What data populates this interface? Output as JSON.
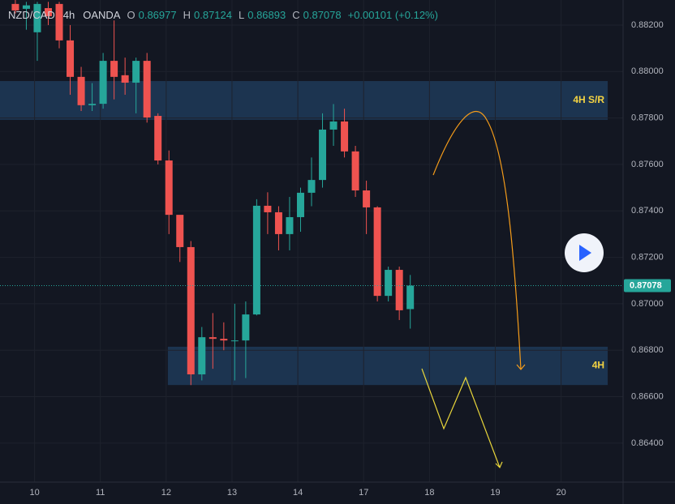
{
  "chart_data": {
    "type": "candlestick",
    "header": {
      "symbol": "NZD/CAD",
      "interval": "4h",
      "broker": "OANDA",
      "open_label": "O",
      "high_label": "H",
      "low_label": "L",
      "close_label": "C",
      "change": "+0.00101 (+0.12%)"
    },
    "x": [
      0,
      1,
      2,
      3,
      4,
      5,
      6,
      7,
      8,
      9,
      10,
      11,
      12,
      13,
      14,
      15,
      16,
      17,
      18,
      19,
      20,
      21,
      22,
      23,
      24,
      25,
      26,
      27,
      28,
      29,
      30,
      31,
      32,
      33,
      34,
      35,
      36
    ],
    "open": [
      0.88291,
      0.8827,
      0.88169,
      0.88273,
      0.88291,
      0.88134,
      0.87977,
      0.87855,
      0.87861,
      0.88046,
      0.87984,
      0.87952,
      0.88046,
      0.87809,
      0.87617,
      0.87383,
      0.87244,
      0.86696,
      0.86856,
      0.86849,
      0.86839,
      0.86842,
      0.86954,
      0.87422,
      0.87394,
      0.873,
      0.87373,
      0.87478,
      0.87533,
      0.8775,
      0.87785,
      0.87656,
      0.87488,
      0.87415,
      0.87034,
      0.87146,
      0.86977
    ],
    "high": [
      0.8831,
      0.883,
      0.883,
      0.883,
      0.883,
      0.882,
      0.8802,
      0.8795,
      0.8808,
      0.8822,
      0.8806,
      0.8806,
      0.8808,
      0.8782,
      0.8766,
      0.8738,
      0.8727,
      0.869,
      0.8696,
      0.8692,
      0.87,
      0.8701,
      0.8745,
      0.8748,
      0.8742,
      0.8746,
      0.875,
      0.8763,
      0.8782,
      0.8786,
      0.8784,
      0.8768,
      0.8753,
      0.8742,
      0.8716,
      0.8716,
      0.87124
    ],
    "low": [
      0.8825,
      0.8818,
      0.88046,
      0.882,
      0.881,
      0.879,
      0.8783,
      0.8783,
      0.8784,
      0.8788,
      0.879,
      0.8782,
      0.8778,
      0.876,
      0.873,
      0.8718,
      0.8665,
      0.8667,
      0.8672,
      0.868,
      0.8667,
      0.8668,
      0.8695,
      0.873,
      0.8723,
      0.8723,
      0.8731,
      0.8742,
      0.875,
      0.8768,
      0.8763,
      0.8746,
      0.873,
      0.8701,
      0.8701,
      0.8693,
      0.86893
    ],
    "close": [
      0.88263,
      0.88285,
      0.88291,
      0.88238,
      0.88134,
      0.87977,
      0.87855,
      0.87861,
      0.88046,
      0.87977,
      0.87952,
      0.88046,
      0.87802,
      0.87617,
      0.87383,
      0.87244,
      0.86696,
      0.86856,
      0.86849,
      0.86842,
      0.86842,
      0.86954,
      0.87422,
      0.87394,
      0.873,
      0.87373,
      0.87478,
      0.87533,
      0.8775,
      0.87785,
      0.87656,
      0.87488,
      0.87415,
      0.87034,
      0.87146,
      0.86972,
      0.87078
    ],
    "up_color": "#26a69a",
    "down_color": "#ef5350",
    "xlim": [
      -1.4,
      55.4
    ],
    "xticks": [
      {
        "value": 1.75,
        "label": "10"
      },
      {
        "value": 7.75,
        "label": "11"
      },
      {
        "value": 13.75,
        "label": "12"
      },
      {
        "value": 19.75,
        "label": "13"
      },
      {
        "value": 25.75,
        "label": "14"
      },
      {
        "value": 31.75,
        "label": "17"
      },
      {
        "value": 37.75,
        "label": "18"
      },
      {
        "value": 43.75,
        "label": "19"
      },
      {
        "value": 49.75,
        "label": "20"
      }
    ],
    "ylim": [
      0.86232,
      0.88308
    ],
    "yticks": [
      {
        "value": 0.882,
        "label": "0.88200"
      },
      {
        "value": 0.88,
        "label": "0.88000"
      },
      {
        "value": 0.878,
        "label": "0.87800"
      },
      {
        "value": 0.876,
        "label": "0.87600"
      },
      {
        "value": 0.874,
        "label": "0.87400"
      },
      {
        "value": 0.872,
        "label": "0.87200"
      },
      {
        "value": 0.87,
        "label": "0.87000"
      },
      {
        "value": 0.868,
        "label": "0.86800"
      },
      {
        "value": 0.866,
        "label": "0.86600"
      },
      {
        "value": 0.864,
        "label": "0.86400"
      }
    ],
    "zones": [
      {
        "label": "4H S/R",
        "top": 0.87959,
        "bottom": 0.87792,
        "x": [
          -1.4,
          54.0
        ]
      },
      {
        "label": "4H",
        "top": 0.86815,
        "bottom": 0.8665,
        "x": [
          13.9,
          54.0
        ]
      }
    ]
  }
}
